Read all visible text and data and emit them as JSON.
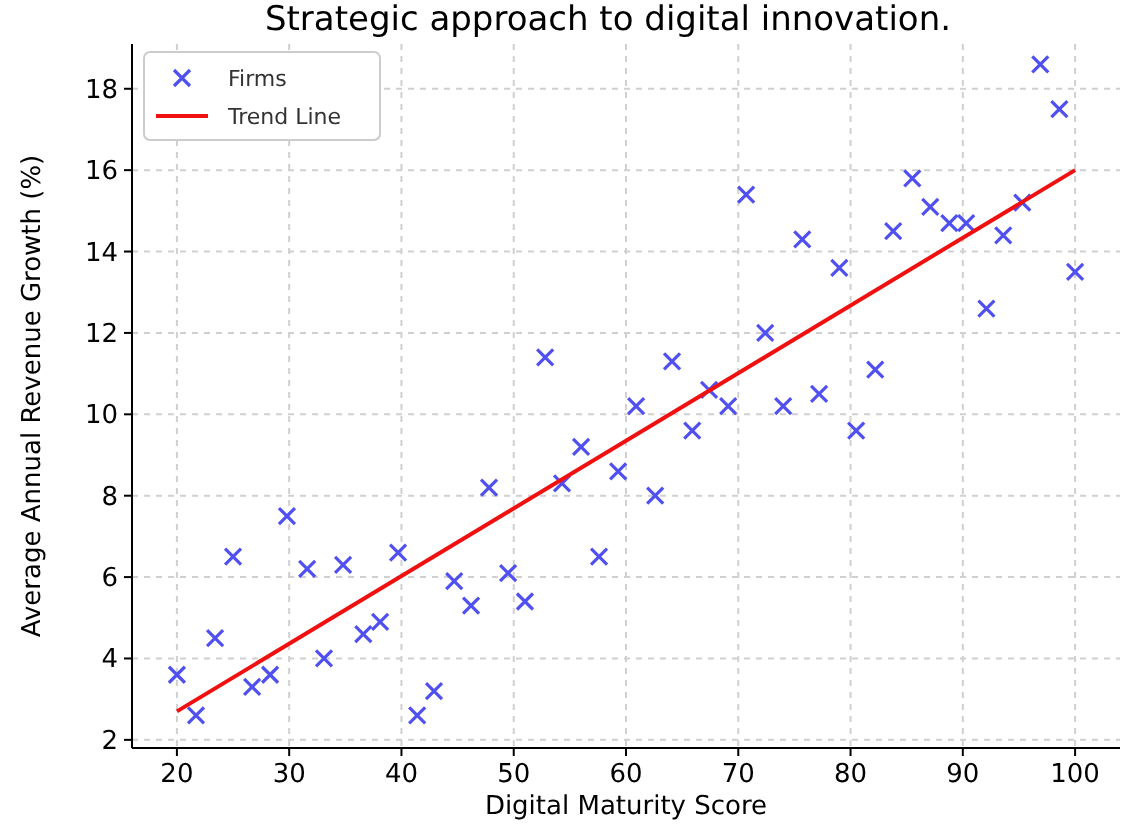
{
  "chart_data": {
    "type": "scatter",
    "title": "Strategic approach to digital innovation.",
    "xlabel": "Digital Maturity Score",
    "ylabel": "Average Annual Revenue Growth (%)",
    "xlim": [
      16,
      104
    ],
    "ylim": [
      1.8,
      19.1
    ],
    "xticks": [
      20,
      30,
      40,
      50,
      60,
      70,
      80,
      90,
      100
    ],
    "yticks": [
      2,
      4,
      6,
      8,
      10,
      12,
      14,
      16,
      18
    ],
    "grid": true,
    "legend": "top left",
    "series": [
      {
        "name": "Firms",
        "color": "#5050f0",
        "marker": "cross",
        "x": [
          20,
          21.7,
          23.4,
          25,
          26.7,
          28.3,
          29.8,
          31.6,
          33.1,
          34.8,
          36.6,
          38.1,
          39.7,
          41.4,
          42.9,
          44.7,
          46.2,
          47.8,
          49.5,
          51,
          52.8,
          54.3,
          56,
          57.6,
          59.3,
          60.9,
          62.6,
          64.1,
          65.9,
          67.4,
          69.1,
          70.7,
          72.4,
          74,
          75.7,
          77.2,
          79,
          80.5,
          82.2,
          83.8,
          85.5,
          87.1,
          88.8,
          90.3,
          92.1,
          93.6,
          95.3,
          96.9,
          98.6,
          100
        ],
        "values": [
          3.6,
          2.6,
          4.5,
          6.5,
          3.3,
          3.6,
          7.5,
          6.2,
          4,
          6.3,
          4.6,
          4.9,
          6.6,
          2.6,
          3.2,
          5.9,
          5.3,
          8.2,
          6.1,
          5.4,
          11.4,
          8.3,
          9.2,
          6.5,
          8.6,
          10.2,
          8,
          11.3,
          9.6,
          10.6,
          10.2,
          15.4,
          12,
          10.2,
          14.3,
          10.5,
          13.6,
          9.6,
          11.1,
          14.5,
          15.8,
          15.1,
          14.7,
          14.7,
          12.6,
          14.4,
          15.2,
          18.6,
          17.5,
          13.5
        ]
      },
      {
        "name": "Trend Line",
        "type": "line",
        "color": "#f01010",
        "line_style": "solid",
        "x": [
          20,
          100
        ],
        "values": [
          2.7,
          16
        ]
      }
    ]
  }
}
